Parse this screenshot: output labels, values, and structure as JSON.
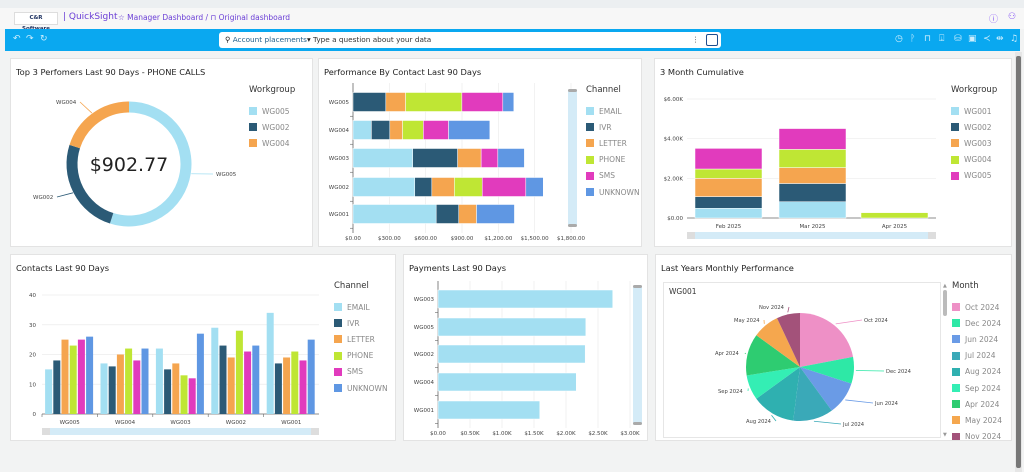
{
  "header": {
    "logo": "C&R Software",
    "app": "| QuickSight",
    "breadcrumb_dashboard": "Manager Dashboard /",
    "breadcrumb_sheet": "Original dashboard",
    "icons": [
      "star-icon",
      "bookmark-icon",
      "help-icon",
      "user-icon"
    ]
  },
  "toolbar": {
    "topic": "Account placements",
    "placeholder": "Type a question about your data",
    "icons": [
      "undo-icon",
      "redo-icon",
      "reset-icon",
      "search-icon",
      "more-icon",
      "ask-icon",
      "schedule-icon",
      "branch-icon",
      "bookmark-icon",
      "download-icon",
      "data-icon",
      "save-icon",
      "share-icon",
      "fit-width-icon",
      "alert-icon"
    ]
  },
  "colors": {
    "toolbar": "#0aa8f0",
    "accent": "#6b3fd6"
  },
  "panels": {
    "p1": {
      "title": "Top 3 Perfomers Last 90 Days - PHONE CALLS",
      "legend_title": "Workgroup"
    },
    "p2": {
      "title": "Performance By Contact Last 90 Days",
      "legend_title": "Channel"
    },
    "p3": {
      "title": "3 Month Cumulative",
      "legend_title": "Workgroup"
    },
    "p4": {
      "title": "Contacts Last 90 Days",
      "legend_title": "Channel"
    },
    "p5": {
      "title": "Payments Last 90 Days"
    },
    "p6": {
      "title": "Last Years Monthly Performance",
      "legend_title": "Month",
      "sub_title": "WG001"
    }
  },
  "chart_data": [
    {
      "type": "pie",
      "donut": true,
      "center_label": "$902.77",
      "categories": [
        "WG005",
        "WG002",
        "WG004"
      ],
      "values": [
        496,
        226,
        181
      ],
      "colors": [
        "#a3dff2",
        "#2b5a76",
        "#f5a54f"
      ],
      "legend": "right"
    },
    {
      "type": "bar",
      "orientation": "horizontal",
      "stacked": true,
      "categories": [
        "WG005",
        "WG004",
        "WG003",
        "WG002",
        "WG001"
      ],
      "xlim": [
        0,
        1800
      ],
      "xticks": [
        "$0.00",
        "$300.00",
        "$600.00",
        "$900.00",
        "$1,200.00",
        "$1,500.00",
        "$1,800.00"
      ],
      "legend": "right",
      "series": [
        {
          "name": "EMAIL",
          "color": "#a3dff2",
          "values": [
            0,
            152,
            493,
            510,
            687
          ]
        },
        {
          "name": "IVR",
          "color": "#2b5a76",
          "values": [
            271,
            152,
            371,
            141,
            186
          ]
        },
        {
          "name": "LETTER",
          "color": "#f5a54f",
          "values": [
            163,
            105,
            194,
            186,
            147
          ]
        },
        {
          "name": "PHONE",
          "color": "#bfe634",
          "values": [
            465,
            172,
            0,
            230,
            0
          ]
        },
        {
          "name": "SMS",
          "color": "#e13bbd",
          "values": [
            338,
            208,
            138,
            360,
            0
          ]
        },
        {
          "name": "UNKNOWN",
          "color": "#5f97e3",
          "values": [
            91,
            341,
            219,
            144,
            313
          ]
        }
      ]
    },
    {
      "type": "bar",
      "stacked": true,
      "categories": [
        "Feb 2025",
        "Mar 2025",
        "Apr 2025"
      ],
      "ylim": [
        0,
        6000
      ],
      "yticks": [
        "$0.00",
        "$2.00K",
        "$4.00K",
        "$6.00K"
      ],
      "legend": "right",
      "series": [
        {
          "name": "WG001",
          "color": "#a3dff2",
          "values": [
            490,
            820,
            0
          ]
        },
        {
          "name": "WG002",
          "color": "#2b5a76",
          "values": [
            590,
            920,
            0
          ]
        },
        {
          "name": "WG003",
          "color": "#f5a54f",
          "values": [
            920,
            800,
            0
          ]
        },
        {
          "name": "WG004",
          "color": "#bfe634",
          "values": [
            470,
            920,
            270
          ]
        },
        {
          "name": "WG005",
          "color": "#e13bbd",
          "values": [
            1040,
            1050,
            0
          ]
        }
      ]
    },
    {
      "type": "bar",
      "stacked": false,
      "categories": [
        "WG005",
        "WG004",
        "WG003",
        "WG002",
        "WG001"
      ],
      "ylim": [
        0,
        40
      ],
      "yticks": [
        "0",
        "10",
        "20",
        "30",
        "40"
      ],
      "legend": "right",
      "series": [
        {
          "name": "EMAIL",
          "color": "#a3dff2",
          "values": [
            15,
            17,
            22,
            29,
            34
          ]
        },
        {
          "name": "IVR",
          "color": "#2b5a76",
          "values": [
            18,
            16,
            15,
            23,
            17
          ]
        },
        {
          "name": "LETTER",
          "color": "#f5a54f",
          "values": [
            25,
            20,
            17,
            19,
            19
          ]
        },
        {
          "name": "PHONE",
          "color": "#bfe634",
          "values": [
            23,
            22,
            13,
            28,
            21
          ]
        },
        {
          "name": "SMS",
          "color": "#e13bbd",
          "values": [
            25,
            18,
            12,
            21,
            18
          ]
        },
        {
          "name": "UNKNOWN",
          "color": "#5f97e3",
          "values": [
            26,
            22,
            27,
            23,
            25
          ]
        }
      ]
    },
    {
      "type": "bar",
      "orientation": "horizontal",
      "categories": [
        "WG003",
        "WG005",
        "WG002",
        "WG004",
        "WG001"
      ],
      "values": [
        2730,
        2310,
        2300,
        2160,
        1590
      ],
      "color": "#a3dff2",
      "xlim": [
        0,
        3000
      ],
      "xticks": [
        "$0.00",
        "$0.50K",
        "$1.00K",
        "$1.50K",
        "$2.00K",
        "$2.50K",
        "$3.00K"
      ]
    },
    {
      "type": "pie",
      "title": "WG001",
      "categories": [
        "Oct 2024",
        "Dec 2024",
        "Jun 2024",
        "Jul 2024",
        "Aug 2024",
        "Sep 2024",
        "Apr 2024",
        "May 2024",
        "Nov 2024"
      ],
      "values": [
        22,
        8,
        10,
        12,
        13,
        7.5,
        12.5,
        8,
        7
      ],
      "colors": [
        "#ee90c6",
        "#2ee8a6",
        "#6a9be6",
        "#3aa9b8",
        "#2fb0b0",
        "#34eeb4",
        "#2ecc71",
        "#f5a74e",
        "#a3527a"
      ],
      "legend": "right"
    }
  ]
}
